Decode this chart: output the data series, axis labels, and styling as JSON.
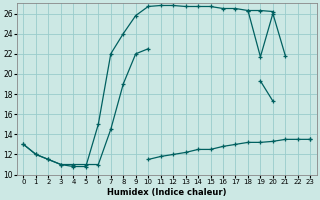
{
  "xlabel": "Humidex (Indice chaleur)",
  "bg_color": "#cce8e4",
  "line_color": "#006060",
  "grid_color": "#99cccc",
  "series": [
    {
      "x": [
        0,
        1,
        2,
        3,
        4,
        5,
        6,
        7,
        8,
        9,
        10,
        11,
        12,
        13,
        14,
        15,
        16,
        17,
        18,
        19,
        20
      ],
      "y": [
        13,
        12,
        11.5,
        11,
        10.8,
        10.8,
        15,
        22,
        24,
        25.8,
        26.7,
        26.8,
        26.8,
        26.7,
        26.7,
        26.7,
        26.5,
        26.5,
        26.3,
        26.3,
        26.2
      ]
    },
    {
      "x": [
        18,
        19,
        20,
        21,
        22,
        23
      ],
      "y": [
        26.3,
        21.7,
        26.0,
        21.8,
        null,
        null
      ]
    },
    {
      "x": [
        0,
        1,
        2,
        3,
        4,
        5,
        6,
        7,
        8,
        9,
        10,
        11,
        12,
        13,
        14,
        15,
        16,
        17,
        18,
        19,
        20,
        21,
        22,
        23
      ],
      "y": [
        13,
        12,
        11.5,
        11,
        11,
        11,
        11,
        14.5,
        19,
        22,
        22.5,
        null,
        null,
        null,
        null,
        null,
        null,
        null,
        null,
        19.3,
        17.3,
        null,
        null,
        13.5
      ]
    },
    {
      "x": [
        0,
        1,
        2,
        3,
        4,
        5,
        6,
        7,
        8,
        9,
        10,
        11,
        12,
        13,
        14,
        15,
        16,
        17,
        18,
        19,
        20,
        21,
        22,
        23
      ],
      "y": [
        null,
        null,
        null,
        null,
        null,
        null,
        null,
        null,
        null,
        null,
        11.5,
        11.8,
        12.0,
        12.2,
        12.5,
        12.5,
        12.8,
        13.0,
        13.2,
        13.2,
        13.3,
        13.5,
        13.5,
        13.5
      ]
    }
  ],
  "xlim": [
    -0.5,
    23.5
  ],
  "ylim": [
    10,
    27
  ],
  "yticks": [
    10,
    12,
    14,
    16,
    18,
    20,
    22,
    24,
    26
  ],
  "xticks": [
    0,
    1,
    2,
    3,
    4,
    5,
    6,
    7,
    8,
    9,
    10,
    11,
    12,
    13,
    14,
    15,
    16,
    17,
    18,
    19,
    20,
    21,
    22,
    23
  ]
}
